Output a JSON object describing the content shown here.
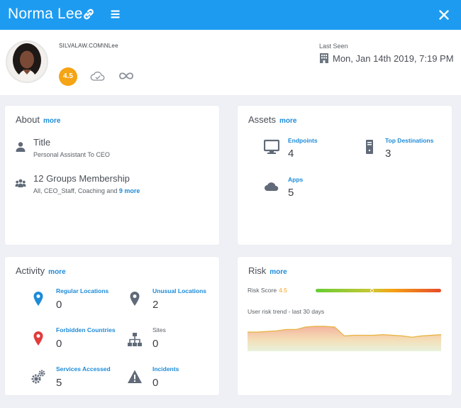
{
  "header": {
    "name": "Norma Lee"
  },
  "profile": {
    "account": "SILVALAW.COM\\NLee",
    "score": "4.5",
    "last_seen_label": "Last Seen",
    "last_seen": "Mon, Jan 14th 2019, 7:19 PM"
  },
  "about": {
    "title": "About",
    "more": "more",
    "title_head": "Title",
    "title_value": "Personal Assistant To CEO",
    "groups_head": "12 Groups Membership",
    "groups_value": "All, CEO_Staff, Coaching and",
    "groups_more": "9 more"
  },
  "assets": {
    "title": "Assets",
    "more": "more",
    "endpoints_label": "Endpoints",
    "endpoints_value": "4",
    "destinations_label": "Top Destinations",
    "destinations_value": "3",
    "apps_label": "Apps",
    "apps_value": "5"
  },
  "activity": {
    "title": "Activity",
    "more": "more",
    "regular_label": "Regular Locations",
    "regular_value": "0",
    "unusual_label": "Unusual Locations",
    "unusual_value": "2",
    "forbidden_label": "Forbidden Countries",
    "forbidden_value": "0",
    "sites_label": "Sites",
    "sites_value": "0",
    "services_label": "Services Accessed",
    "services_value": "5",
    "incidents_label": "Incidents",
    "incidents_value": "0"
  },
  "risk": {
    "title": "Risk",
    "more": "more",
    "score_label": "Risk Score",
    "score_value": "4.5",
    "score_fraction": 0.45,
    "trend_label": "User risk trend - last 30 days",
    "trend": [
      3.0,
      3.0,
      3.1,
      3.2,
      3.4,
      3.4,
      3.8,
      3.9,
      3.9,
      3.8,
      2.4,
      2.5,
      2.5,
      2.5,
      2.6,
      2.5,
      2.4,
      2.2,
      2.4,
      2.5,
      2.6
    ],
    "trend_ylim": [
      0,
      5
    ]
  },
  "colors": {
    "accent": "#1d9bf0",
    "link": "#1d8bd8",
    "score": "#f4a414",
    "pin_blue": "#1d8bd8",
    "pin_red": "#e03c3c",
    "icon_gray": "#606a78"
  }
}
